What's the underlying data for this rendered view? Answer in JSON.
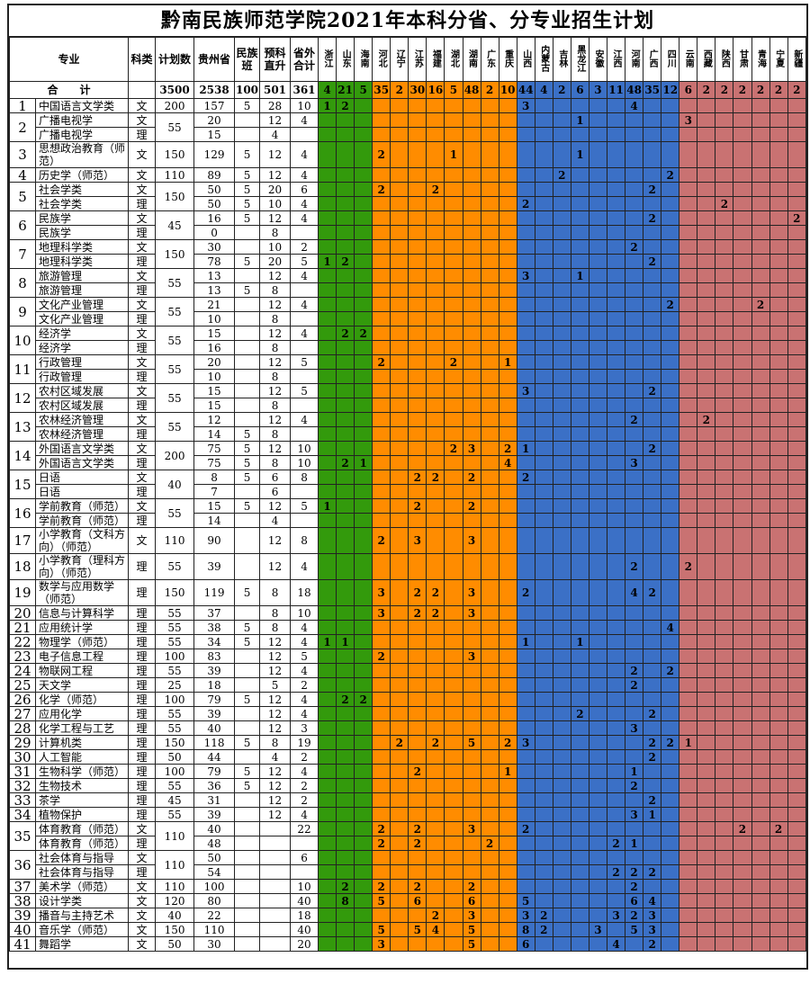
{
  "title": "黔南民族师范学院2021年本科分省、分专业招生计划",
  "headers": {
    "major": "专业",
    "type": "科类",
    "plan": "计划数",
    "guizhou": "贵州省",
    "ethnic": "民族班",
    "prep": "预科直升",
    "outside": "省外合计"
  },
  "provinces": [
    "浙江",
    "山东",
    "海南",
    "河北",
    "辽宁",
    "江苏",
    "福建",
    "湖北",
    "湖南",
    "广东",
    "重庆",
    "山西",
    "内蒙古",
    "吉林",
    "黑龙江",
    "安徽",
    "江西",
    "河南",
    "广西",
    "四川",
    "云南",
    "西藏",
    "陕西",
    "甘肃",
    "青海",
    "宁夏",
    "新疆"
  ],
  "region_colors": {
    "group1": "#339a0c",
    "group2": "#ff8c00",
    "group3": "#3b70c6",
    "group4": "#c97272"
  },
  "total": {
    "label": "合　　计",
    "plan": "3500",
    "guizhou": "2538",
    "ethnic": "100",
    "prep": "501",
    "outside": "361",
    "p": {
      "浙江": "4",
      "山东": "21",
      "海南": "5",
      "河北": "35",
      "辽宁": "2",
      "江苏": "30",
      "福建": "16",
      "湖北": "5",
      "湖南": "48",
      "广东": "2",
      "重庆": "10",
      "山西": "44",
      "内蒙古": "4",
      "吉林": "2",
      "黑龙江": "6",
      "安徽": "3",
      "江西": "11",
      "河南": "48",
      "广西": "35",
      "四川": "12",
      "云南": "6",
      "西藏": "2",
      "陕西": "2",
      "甘肃": "2",
      "青海": "2",
      "宁夏": "2",
      "新疆": "2"
    }
  },
  "majors": [
    {
      "no": "1",
      "plan": "200",
      "subs": [
        {
          "name": "中国语言文学类",
          "type": "文",
          "gz": "157",
          "mz": "5",
          "yk": "28",
          "sw": "10",
          "p": {
            "浙江": "1",
            "山东": "2",
            "山西": "3",
            "河南": "4"
          }
        }
      ]
    },
    {
      "no": "2",
      "plan": "55",
      "subs": [
        {
          "name": "广播电视学",
          "type": "文",
          "gz": "20",
          "mz": "",
          "yk": "12",
          "sw": "4",
          "p": {
            "黑龙江": "1",
            "云南": "3"
          }
        },
        {
          "name": "广播电视学",
          "type": "理",
          "gz": "15",
          "mz": "",
          "yk": "4",
          "sw": "",
          "p": {}
        }
      ]
    },
    {
      "no": "3",
      "plan": "150",
      "subs": [
        {
          "name": "思想政治教育（师范）",
          "type": "文",
          "gz": "129",
          "mz": "5",
          "yk": "12",
          "sw": "4",
          "p": {
            "河北": "2",
            "湖北": "1",
            "黑龙江": "1"
          }
        }
      ]
    },
    {
      "no": "4",
      "plan": "110",
      "subs": [
        {
          "name": "历史学（师范）",
          "type": "文",
          "gz": "89",
          "mz": "5",
          "yk": "12",
          "sw": "4",
          "p": {
            "吉林": "2",
            "四川": "2"
          }
        }
      ]
    },
    {
      "no": "5",
      "plan": "150",
      "subs": [
        {
          "name": "社会学类",
          "type": "文",
          "gz": "50",
          "mz": "5",
          "yk": "20",
          "sw": "6",
          "p": {
            "河北": "2",
            "福建": "2",
            "广西": "2"
          }
        },
        {
          "name": "社会学类",
          "type": "理",
          "gz": "50",
          "mz": "5",
          "yk": "10",
          "sw": "4",
          "p": {
            "山西": "2",
            "陕西": "2"
          }
        }
      ]
    },
    {
      "no": "6",
      "plan": "45",
      "subs": [
        {
          "name": "民族学",
          "type": "文",
          "gz": "16",
          "mz": "5",
          "yk": "12",
          "sw": "4",
          "p": {
            "广西": "2",
            "新疆": "2"
          }
        },
        {
          "name": "民族学",
          "type": "理",
          "gz": "0",
          "mz": "",
          "yk": "8",
          "sw": "",
          "p": {}
        }
      ]
    },
    {
      "no": "7",
      "plan": "150",
      "subs": [
        {
          "name": "地理科学类",
          "type": "文",
          "gz": "30",
          "mz": "",
          "yk": "10",
          "sw": "2",
          "p": {
            "河南": "2"
          }
        },
        {
          "name": "地理科学类",
          "type": "理",
          "gz": "78",
          "mz": "5",
          "yk": "20",
          "sw": "5",
          "p": {
            "浙江": "1",
            "山东": "2",
            "广西": "2"
          }
        }
      ]
    },
    {
      "no": "8",
      "plan": "55",
      "subs": [
        {
          "name": "旅游管理",
          "type": "文",
          "gz": "13",
          "mz": "",
          "yk": "12",
          "sw": "4",
          "p": {
            "山西": "3",
            "黑龙江": "1"
          }
        },
        {
          "name": "旅游管理",
          "type": "理",
          "gz": "13",
          "mz": "5",
          "yk": "8",
          "sw": "",
          "p": {}
        }
      ]
    },
    {
      "no": "9",
      "plan": "55",
      "subs": [
        {
          "name": "文化产业管理",
          "type": "文",
          "gz": "21",
          "mz": "",
          "yk": "12",
          "sw": "4",
          "p": {
            "四川": "2",
            "青海": "2"
          }
        },
        {
          "name": "文化产业管理",
          "type": "理",
          "gz": "10",
          "mz": "",
          "yk": "8",
          "sw": "",
          "p": {}
        }
      ]
    },
    {
      "no": "10",
      "plan": "55",
      "subs": [
        {
          "name": "经济学",
          "type": "文",
          "gz": "15",
          "mz": "",
          "yk": "12",
          "sw": "4",
          "p": {
            "山东": "2",
            "海南": "2"
          }
        },
        {
          "name": "经济学",
          "type": "理",
          "gz": "16",
          "mz": "",
          "yk": "8",
          "sw": "",
          "p": {}
        }
      ]
    },
    {
      "no": "11",
      "plan": "55",
      "subs": [
        {
          "name": "行政管理",
          "type": "文",
          "gz": "20",
          "mz": "",
          "yk": "12",
          "sw": "5",
          "p": {
            "河北": "2",
            "湖北": "2",
            "重庆": "1"
          }
        },
        {
          "name": "行政管理",
          "type": "理",
          "gz": "10",
          "mz": "",
          "yk": "8",
          "sw": "",
          "p": {}
        }
      ]
    },
    {
      "no": "12",
      "plan": "55",
      "subs": [
        {
          "name": "农村区域发展",
          "type": "文",
          "gz": "15",
          "mz": "",
          "yk": "12",
          "sw": "5",
          "p": {
            "山西": "3",
            "广西": "2"
          }
        },
        {
          "name": "农村区域发展",
          "type": "理",
          "gz": "15",
          "mz": "",
          "yk": "8",
          "sw": "",
          "p": {}
        }
      ]
    },
    {
      "no": "13",
      "plan": "55",
      "subs": [
        {
          "name": "农林经济管理",
          "type": "文",
          "gz": "12",
          "mz": "",
          "yk": "12",
          "sw": "4",
          "p": {
            "河南": "2",
            "西藏": "2"
          }
        },
        {
          "name": "农林经济管理",
          "type": "理",
          "gz": "14",
          "mz": "5",
          "yk": "8",
          "sw": "",
          "p": {}
        }
      ]
    },
    {
      "no": "14",
      "plan": "200",
      "subs": [
        {
          "name": "外国语言文学类",
          "type": "文",
          "gz": "75",
          "mz": "5",
          "yk": "12",
          "sw": "10",
          "p": {
            "湖北": "2",
            "湖南": "3",
            "重庆": "2",
            "山西": "1",
            "广西": "2"
          }
        },
        {
          "name": "外国语言文学类",
          "type": "理",
          "gz": "75",
          "mz": "5",
          "yk": "8",
          "sw": "10",
          "p": {
            "山东": "2",
            "海南": "1",
            "重庆": "4",
            "河南": "3"
          }
        }
      ]
    },
    {
      "no": "15",
      "plan": "40",
      "subs": [
        {
          "name": "日语",
          "type": "文",
          "gz": "8",
          "mz": "5",
          "yk": "6",
          "sw": "8",
          "p": {
            "江苏": "2",
            "福建": "2",
            "湖南": "2",
            "山西": "2"
          }
        },
        {
          "name": "日语",
          "type": "理",
          "gz": "7",
          "mz": "",
          "yk": "6",
          "sw": "",
          "p": {}
        }
      ]
    },
    {
      "no": "16",
      "plan": "55",
      "subs": [
        {
          "name": "学前教育（师范）",
          "type": "文",
          "gz": "15",
          "mz": "5",
          "yk": "12",
          "sw": "5",
          "p": {
            "浙江": "1",
            "江苏": "2",
            "湖南": "2"
          }
        },
        {
          "name": "学前教育（师范）",
          "type": "理",
          "gz": "14",
          "mz": "",
          "yk": "4",
          "sw": "",
          "p": {}
        }
      ]
    },
    {
      "no": "17",
      "plan": "110",
      "subs": [
        {
          "name": "小学教育（文科方向）（师范）",
          "type": "文",
          "gz": "90",
          "mz": "",
          "yk": "12",
          "sw": "8",
          "p": {
            "河北": "2",
            "江苏": "3",
            "湖南": "3"
          }
        }
      ]
    },
    {
      "no": "18",
      "plan": "55",
      "subs": [
        {
          "name": "小学教育（理科方向）（师范）",
          "type": "理",
          "gz": "39",
          "mz": "",
          "yk": "12",
          "sw": "4",
          "p": {
            "河南": "2",
            "云南": "2"
          }
        }
      ]
    },
    {
      "no": "19",
      "plan": "150",
      "subs": [
        {
          "name": "数学与应用数学（师范）",
          "type": "理",
          "gz": "119",
          "mz": "5",
          "yk": "8",
          "sw": "18",
          "p": {
            "河北": "3",
            "江苏": "2",
            "福建": "2",
            "湖南": "3",
            "山西": "2",
            "河南": "4",
            "广西": "2"
          }
        }
      ]
    },
    {
      "no": "20",
      "plan": "55",
      "subs": [
        {
          "name": "信息与计算科学",
          "type": "理",
          "gz": "37",
          "mz": "",
          "yk": "8",
          "sw": "10",
          "p": {
            "河北": "3",
            "江苏": "2",
            "福建": "2",
            "湖南": "3"
          }
        }
      ]
    },
    {
      "no": "21",
      "plan": "55",
      "subs": [
        {
          "name": "应用统计学",
          "type": "理",
          "gz": "38",
          "mz": "5",
          "yk": "8",
          "sw": "4",
          "p": {
            "四川": "4"
          }
        }
      ]
    },
    {
      "no": "22",
      "plan": "55",
      "subs": [
        {
          "name": "物理学（师范）",
          "type": "理",
          "gz": "34",
          "mz": "5",
          "yk": "12",
          "sw": "4",
          "p": {
            "浙江": "1",
            "山东": "1",
            "山西": "1",
            "黑龙江": "1"
          }
        }
      ]
    },
    {
      "no": "23",
      "plan": "100",
      "subs": [
        {
          "name": "电子信息工程",
          "type": "理",
          "gz": "83",
          "mz": "",
          "yk": "12",
          "sw": "5",
          "p": {
            "河北": "2",
            "湖南": "3"
          }
        }
      ]
    },
    {
      "no": "24",
      "plan": "55",
      "subs": [
        {
          "name": "物联网工程",
          "type": "理",
          "gz": "39",
          "mz": "",
          "yk": "12",
          "sw": "4",
          "p": {
            "河南": "2",
            "四川": "2"
          }
        }
      ]
    },
    {
      "no": "25",
      "plan": "25",
      "subs": [
        {
          "name": "天文学",
          "type": "理",
          "gz": "18",
          "mz": "",
          "yk": "5",
          "sw": "2",
          "p": {
            "河南": "2"
          }
        }
      ]
    },
    {
      "no": "26",
      "plan": "100",
      "subs": [
        {
          "name": "化学（师范）",
          "type": "理",
          "gz": "79",
          "mz": "5",
          "yk": "12",
          "sw": "4",
          "p": {
            "山东": "2",
            "海南": "2"
          }
        }
      ]
    },
    {
      "no": "27",
      "plan": "55",
      "subs": [
        {
          "name": "应用化学",
          "type": "理",
          "gz": "39",
          "mz": "",
          "yk": "12",
          "sw": "4",
          "p": {
            "黑龙江": "2",
            "广西": "2"
          }
        }
      ]
    },
    {
      "no": "28",
      "plan": "55",
      "subs": [
        {
          "name": "化学工程与工艺",
          "type": "理",
          "gz": "40",
          "mz": "",
          "yk": "12",
          "sw": "3",
          "p": {
            "河南": "3"
          }
        }
      ]
    },
    {
      "no": "29",
      "plan": "150",
      "subs": [
        {
          "name": "计算机类",
          "type": "理",
          "gz": "118",
          "mz": "5",
          "yk": "8",
          "sw": "19",
          "p": {
            "辽宁": "2",
            "福建": "2",
            "湖南": "5",
            "重庆": "2",
            "山西": "3",
            "广西": "2",
            "四川": "2",
            "云南": "1"
          }
        }
      ]
    },
    {
      "no": "30",
      "plan": "50",
      "subs": [
        {
          "name": "人工智能",
          "type": "理",
          "gz": "44",
          "mz": "",
          "yk": "4",
          "sw": "2",
          "p": {
            "广西": "2"
          }
        }
      ]
    },
    {
      "no": "31",
      "plan": "100",
      "subs": [
        {
          "name": "生物科学（师范）",
          "type": "理",
          "gz": "79",
          "mz": "5",
          "yk": "12",
          "sw": "4",
          "p": {
            "江苏": "2",
            "重庆": "1",
            "河南": "1"
          }
        }
      ]
    },
    {
      "no": "32",
      "plan": "55",
      "subs": [
        {
          "name": "生物技术",
          "type": "理",
          "gz": "36",
          "mz": "5",
          "yk": "12",
          "sw": "2",
          "p": {
            "河南": "2"
          }
        }
      ]
    },
    {
      "no": "33",
      "plan": "45",
      "subs": [
        {
          "name": "茶学",
          "type": "理",
          "gz": "31",
          "mz": "",
          "yk": "12",
          "sw": "2",
          "p": {
            "广西": "2"
          }
        }
      ]
    },
    {
      "no": "34",
      "plan": "55",
      "subs": [
        {
          "name": "植物保护",
          "type": "理",
          "gz": "39",
          "mz": "",
          "yk": "12",
          "sw": "4",
          "p": {
            "河南": "3",
            "广西": "1"
          }
        }
      ]
    },
    {
      "no": "35",
      "plan": "110",
      "subs": [
        {
          "name": "体育教育（师范）",
          "type": "文",
          "gz": "40",
          "mz": "",
          "yk": "",
          "sw": "22",
          "p": {
            "河北": "2",
            "江苏": "2",
            "湖南": "3",
            "山西": "2",
            "甘肃": "2",
            "宁夏": "2"
          }
        },
        {
          "name": "体育教育（师范）",
          "type": "理",
          "gz": "48",
          "mz": "",
          "yk": "",
          "sw": "",
          "p": {
            "河北": "2",
            "江苏": "2",
            "广东": "2",
            "江西": "2",
            "河南": "1"
          }
        }
      ]
    },
    {
      "no": "36",
      "plan": "110",
      "subs": [
        {
          "name": "社会体育与指导",
          "type": "文",
          "gz": "50",
          "mz": "",
          "yk": "",
          "sw": "6",
          "p": {}
        },
        {
          "name": "社会体育与指导",
          "type": "理",
          "gz": "54",
          "mz": "",
          "yk": "",
          "sw": "",
          "p": {
            "江西": "2",
            "河南": "2",
            "广西": "2"
          }
        }
      ]
    },
    {
      "no": "37",
      "plan": "110",
      "subs": [
        {
          "name": "美术学（师范）",
          "type": "文",
          "gz": "100",
          "mz": "",
          "yk": "",
          "sw": "10",
          "p": {
            "山东": "2",
            "河北": "2",
            "江苏": "2",
            "湖南": "2",
            "河南": "2"
          }
        }
      ]
    },
    {
      "no": "38",
      "plan": "120",
      "subs": [
        {
          "name": "设计学类",
          "type": "文",
          "gz": "80",
          "mz": "",
          "yk": "",
          "sw": "40",
          "p": {
            "山东": "8",
            "河北": "5",
            "江苏": "6",
            "湖南": "6",
            "山西": "5",
            "河南": "6",
            "广西": "4"
          }
        }
      ]
    },
    {
      "no": "39",
      "plan": "40",
      "subs": [
        {
          "name": "播音与主持艺术",
          "type": "文",
          "gz": "22",
          "mz": "",
          "yk": "",
          "sw": "18",
          "p": {
            "福建": "2",
            "湖南": "3",
            "山西": "3",
            "内蒙古": "2",
            "江西": "3",
            "河南": "2",
            "广西": "3"
          }
        }
      ]
    },
    {
      "no": "40",
      "plan": "150",
      "subs": [
        {
          "name": "音乐学（师范）",
          "type": "文",
          "gz": "110",
          "mz": "",
          "yk": "",
          "sw": "40",
          "p": {
            "河北": "5",
            "江苏": "5",
            "福建": "4",
            "湖南": "5",
            "山西": "8",
            "内蒙古": "2",
            "安徽": "3",
            "河南": "5",
            "广西": "3"
          }
        }
      ]
    },
    {
      "no": "41",
      "plan": "50",
      "subs": [
        {
          "name": "舞蹈学",
          "type": "文",
          "gz": "30",
          "mz": "",
          "yk": "",
          "sw": "20",
          "p": {
            "河北": "3",
            "湖南": "5",
            "山西": "6",
            "江西": "4",
            "广西": "2"
          }
        }
      ]
    }
  ]
}
